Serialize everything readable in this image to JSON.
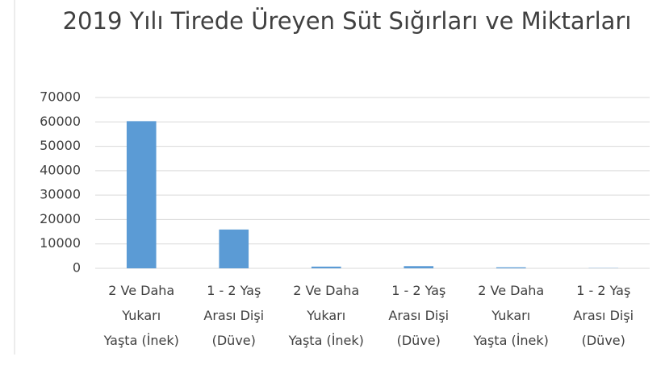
{
  "chart_data": {
    "type": "bar",
    "title": "2019 Yılı Tirede Üreyen  Süt Sığırları ve Miktarları",
    "categories": [
      "2 Ve Daha\nYukarı\nYaşta (İnek)",
      "1 - 2 Yaş\nArası Dişi\n(Düve)",
      "2 Ve Daha\nYukarı\nYaşta (İnek)",
      "1 - 2 Yaş\nArası Dişi\n(Düve)",
      "2 Ve Daha\nYukarı\nYaşta (İnek)",
      "1 - 2 Yaş\nArası Dişi\n(Düve)"
    ],
    "values": [
      60300,
      15900,
      700,
      900,
      400,
      100
    ],
    "color": "#5b9bd5",
    "ylim": [
      0,
      70000
    ],
    "yticks": [
      0,
      10000,
      20000,
      30000,
      40000,
      50000,
      60000,
      70000
    ],
    "grid": true
  }
}
